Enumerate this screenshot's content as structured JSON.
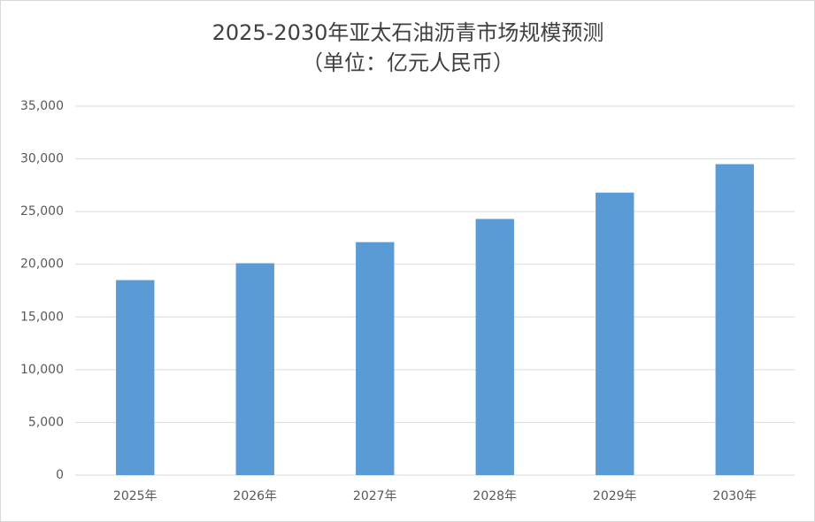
{
  "chart_data": {
    "type": "bar",
    "title": "2025-2030年亚太石油沥青市场规模预测",
    "subtitle": "（单位：亿元人民币）",
    "categories": [
      "2025年",
      "2026年",
      "2027年",
      "2028年",
      "2029年",
      "2030年"
    ],
    "values": [
      18500,
      20100,
      22100,
      24300,
      26800,
      29500
    ],
    "color": "#5b9bd5",
    "ylim": [
      0,
      35000
    ],
    "yticks": [
      0,
      {
        "value": 5000,
        "label": "5,000"
      },
      {
        "value": 10000,
        "label": "10,000"
      },
      {
        "value": 15000,
        "label": "15,000"
      },
      {
        "value": 20000,
        "label": "20,000"
      },
      {
        "value": 25000,
        "label": "25,000"
      },
      {
        "value": 30000,
        "label": "30,000"
      },
      {
        "value": 35000,
        "label": "35,000"
      }
    ],
    "grid": true
  }
}
